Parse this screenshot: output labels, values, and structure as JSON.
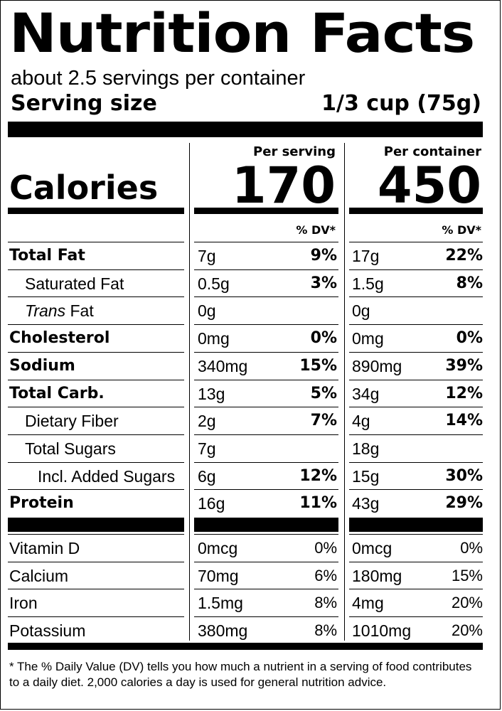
{
  "title": "Nutrition Facts",
  "servings_per_container": "about 2.5 servings per container",
  "serving_size_label": "Serving size",
  "serving_size_value": "1/3 cup (75g)",
  "calories_label": "Calories",
  "columns": [
    {
      "header": "Per serving",
      "calories": "170",
      "dv_header": "% DV*"
    },
    {
      "header": "Per container",
      "calories": "450",
      "dv_header": "% DV*"
    }
  ],
  "nutrients": [
    {
      "name": "Total Fat",
      "bold": true,
      "indent": 0,
      "values": [
        {
          "amount": "7g",
          "dv": "9%"
        },
        {
          "amount": "17g",
          "dv": "22%"
        }
      ]
    },
    {
      "name": "Saturated Fat",
      "bold": false,
      "indent": 1,
      "values": [
        {
          "amount": "0.5g",
          "dv": "3%"
        },
        {
          "amount": "1.5g",
          "dv": "8%"
        }
      ]
    },
    {
      "name_italic": "Trans",
      "name": " Fat",
      "bold": false,
      "indent": 1,
      "values": [
        {
          "amount": "0g",
          "dv": ""
        },
        {
          "amount": "0g",
          "dv": ""
        }
      ]
    },
    {
      "name": "Cholesterol",
      "bold": true,
      "indent": 0,
      "values": [
        {
          "amount": "0mg",
          "dv": "0%"
        },
        {
          "amount": "0mg",
          "dv": "0%"
        }
      ]
    },
    {
      "name": "Sodium",
      "bold": true,
      "indent": 0,
      "values": [
        {
          "amount": "340mg",
          "dv": "15%"
        },
        {
          "amount": "890mg",
          "dv": "39%"
        }
      ]
    },
    {
      "name": "Total Carb.",
      "bold": true,
      "indent": 0,
      "values": [
        {
          "amount": "13g",
          "dv": "5%"
        },
        {
          "amount": "34g",
          "dv": "12%"
        }
      ]
    },
    {
      "name": "Dietary Fiber",
      "bold": false,
      "indent": 1,
      "values": [
        {
          "amount": "2g",
          "dv": "7%"
        },
        {
          "amount": "4g",
          "dv": "14%"
        }
      ]
    },
    {
      "name": "Total Sugars",
      "bold": false,
      "indent": 1,
      "values": [
        {
          "amount": "7g",
          "dv": ""
        },
        {
          "amount": "18g",
          "dv": ""
        }
      ]
    },
    {
      "name": "Incl. Added Sugars",
      "bold": false,
      "indent": 2,
      "values": [
        {
          "amount": "6g",
          "dv": "12%"
        },
        {
          "amount": "15g",
          "dv": "30%"
        }
      ]
    },
    {
      "name": "Protein",
      "bold": true,
      "indent": 0,
      "values": [
        {
          "amount": "16g",
          "dv": "11%"
        },
        {
          "amount": "43g",
          "dv": "29%"
        }
      ]
    }
  ],
  "vitamins": [
    {
      "name": "Vitamin D",
      "values": [
        {
          "amount": "0mcg",
          "dv": "0%"
        },
        {
          "amount": "0mcg",
          "dv": "0%"
        }
      ]
    },
    {
      "name": "Calcium",
      "values": [
        {
          "amount": "70mg",
          "dv": "6%"
        },
        {
          "amount": "180mg",
          "dv": "15%"
        }
      ]
    },
    {
      "name": "Iron",
      "values": [
        {
          "amount": "1.5mg",
          "dv": "8%"
        },
        {
          "amount": "4mg",
          "dv": "20%"
        }
      ]
    },
    {
      "name": "Potassium",
      "values": [
        {
          "amount": "380mg",
          "dv": "8%"
        },
        {
          "amount": "1010mg",
          "dv": "20%"
        }
      ]
    }
  ],
  "footnote": "* The % Daily Value (DV) tells you how much a nutrient in a serving of food contributes to a daily diet. 2,000 calories a day is used for general nutrition advice."
}
